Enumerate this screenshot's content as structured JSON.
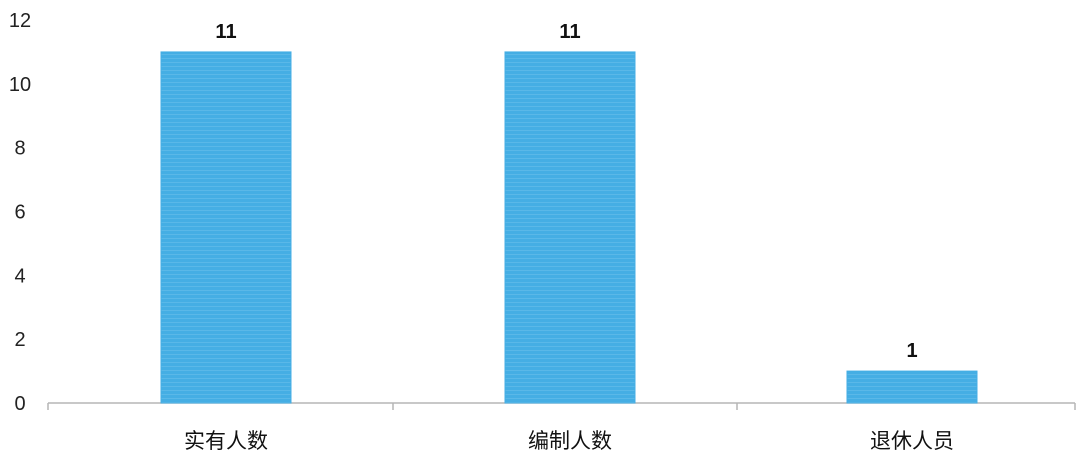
{
  "chart_data": {
    "type": "bar",
    "categories": [
      "实有人数",
      "编制人数",
      "退休人员"
    ],
    "values": [
      11,
      11,
      1
    ],
    "data_labels": [
      "11",
      "11",
      "1"
    ],
    "yticks": [
      "0",
      "2",
      "4",
      "6",
      "8",
      "10",
      "12"
    ],
    "ylim": [
      0,
      12
    ],
    "grid": false,
    "legend": "none",
    "bar_color": "#45aee4"
  }
}
